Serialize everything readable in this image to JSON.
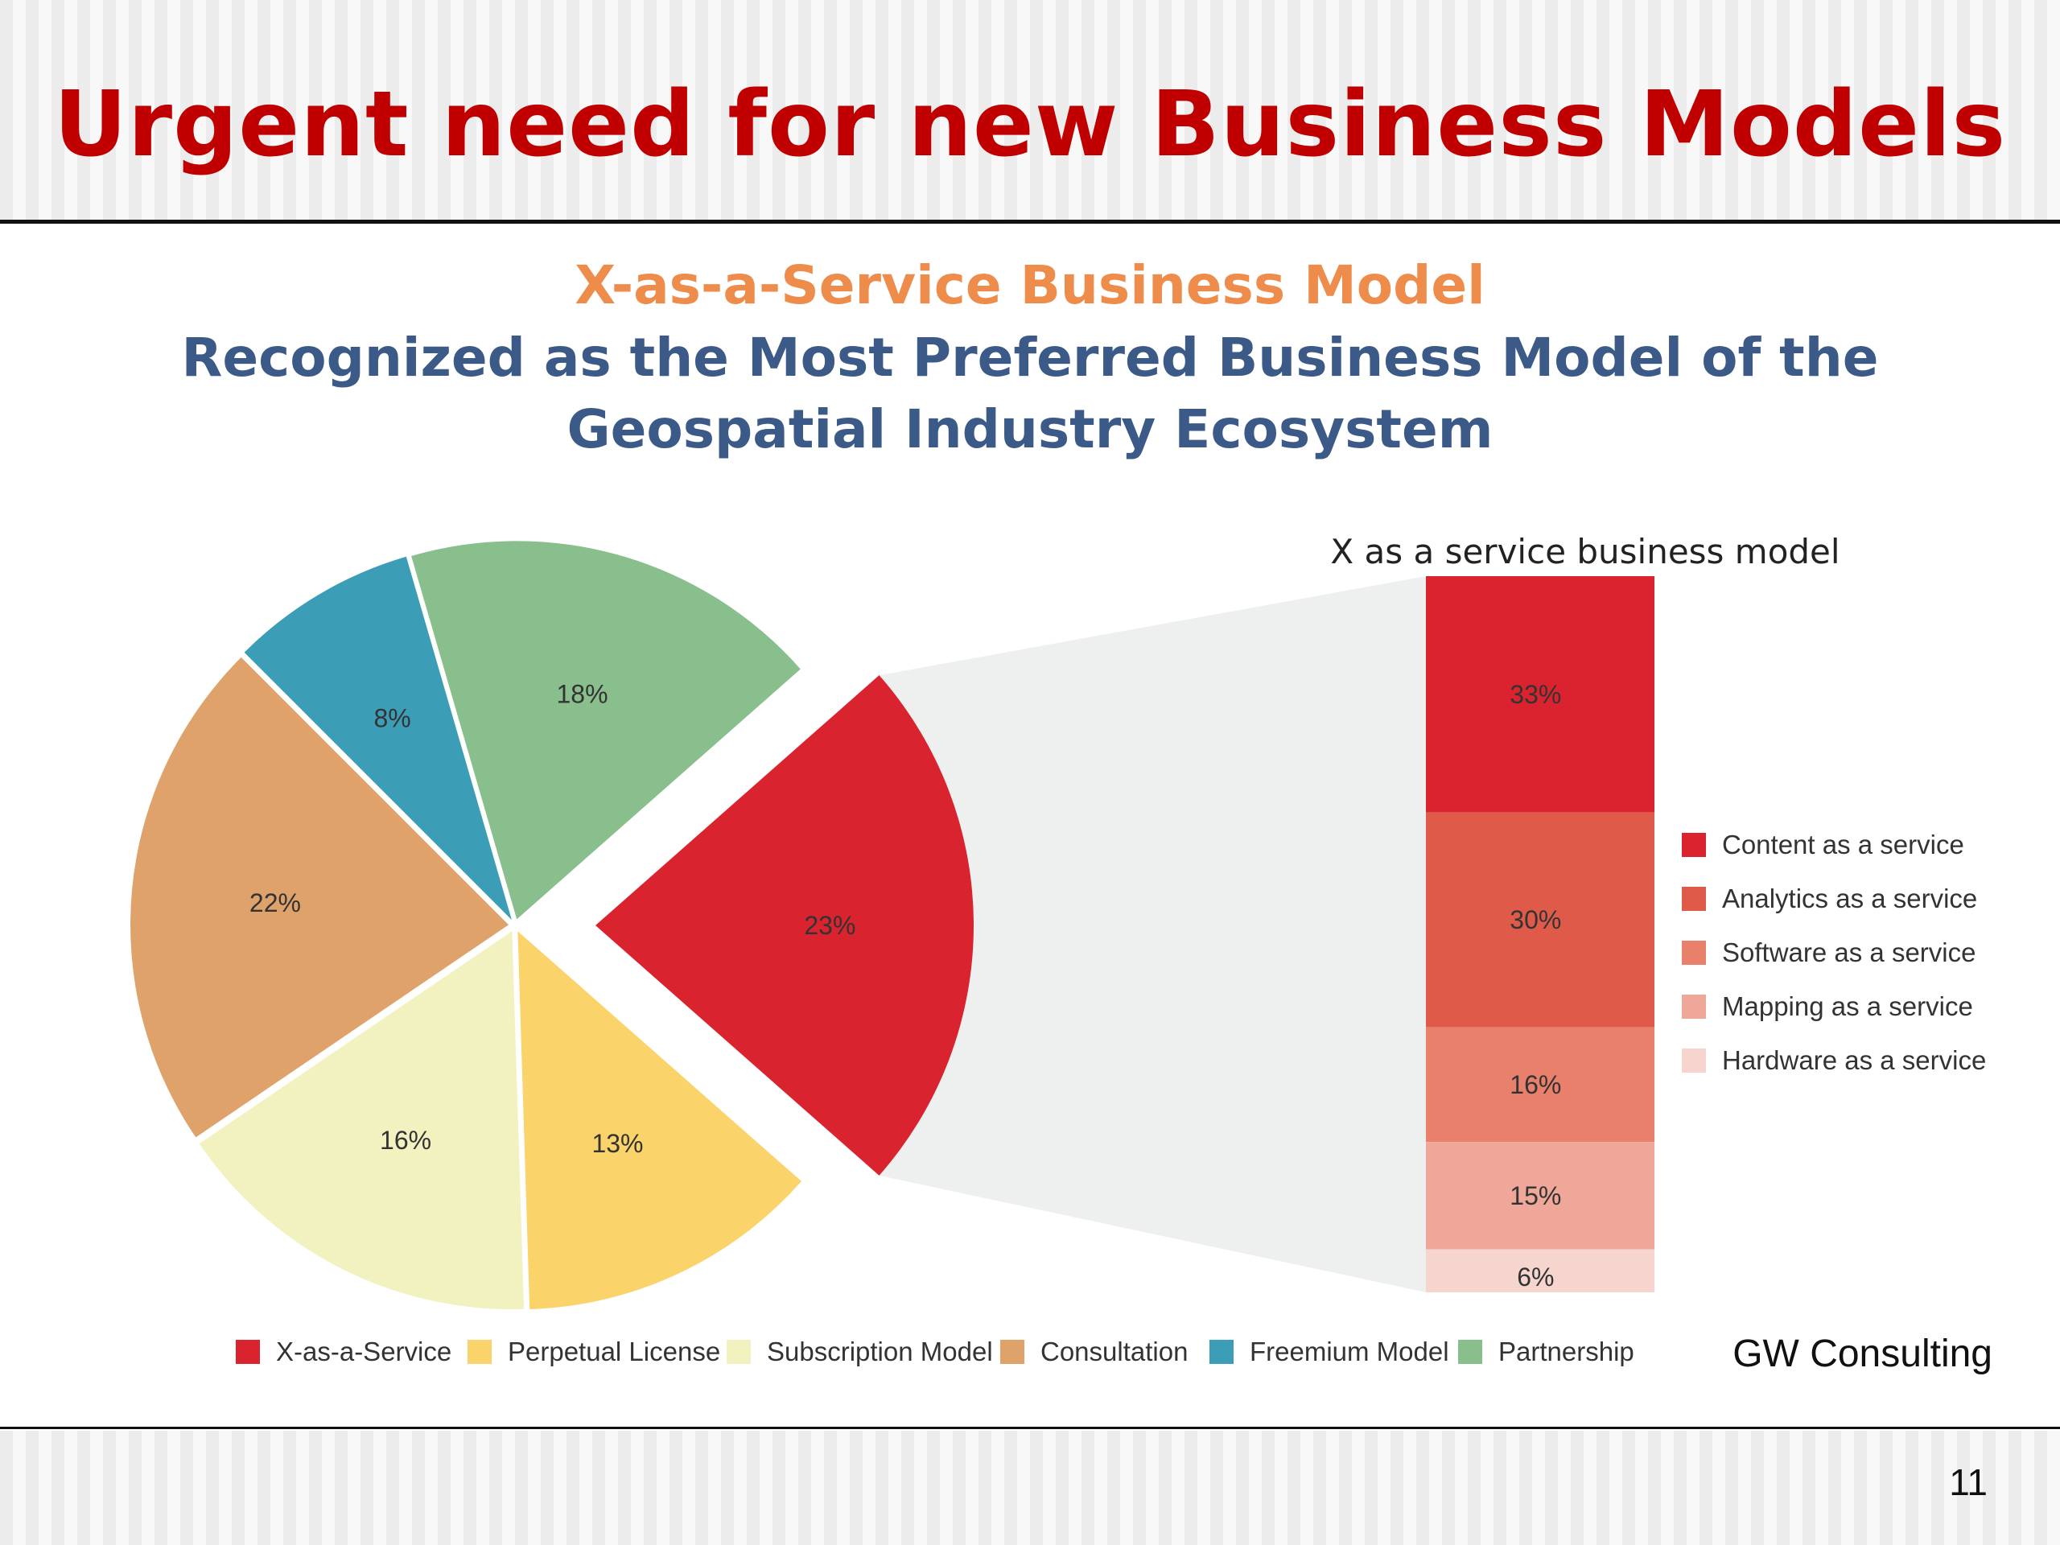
{
  "slide": {
    "title": "Urgent need for new Business Models",
    "source": "GW Consulting",
    "page_number": "11"
  },
  "chart_data": [
    {
      "type": "pie",
      "title": "X-as-a-Service Business Model",
      "subtitle_line1": "Recognized as the Most Preferred Business Model of the",
      "subtitle_line2": "Geospatial Industry Ecosystem",
      "legend_position": "bottom",
      "slices": [
        {
          "name": "X-as-a-Service",
          "value": 23,
          "label": "23%",
          "color": "#d9232e",
          "exploded": true
        },
        {
          "name": "Perpetual License",
          "value": 13,
          "label": "13%",
          "color": "#fbd36b"
        },
        {
          "name": "Subscription Model",
          "value": 16,
          "label": "16%",
          "color": "#f2f1c0"
        },
        {
          "name": "Consultation",
          "value": 22,
          "label": "22%",
          "color": "#dfa26b"
        },
        {
          "name": "Freemium Model",
          "value": 8,
          "label": "8%",
          "color": "#3c9db6"
        },
        {
          "name": "Partnership",
          "value": 18,
          "label": "18%",
          "color": "#88bf8d"
        }
      ]
    },
    {
      "type": "bar",
      "stacked": true,
      "title": "X as a service business model",
      "legend_position": "right",
      "series": [
        {
          "name": "Content as a service",
          "value": 33,
          "label": "33%",
          "color": "#db2330"
        },
        {
          "name": "Analytics as a service",
          "value": 30,
          "label": "30%",
          "color": "#e05a4a"
        },
        {
          "name": "Software as a service",
          "value": 16,
          "label": "16%",
          "color": "#e8806b"
        },
        {
          "name": "Mapping as a service",
          "value": 15,
          "label": "15%",
          "color": "#efa799"
        },
        {
          "name": "Hardware as a service",
          "value": 6,
          "label": "6%",
          "color": "#f6d5cf"
        }
      ]
    }
  ]
}
